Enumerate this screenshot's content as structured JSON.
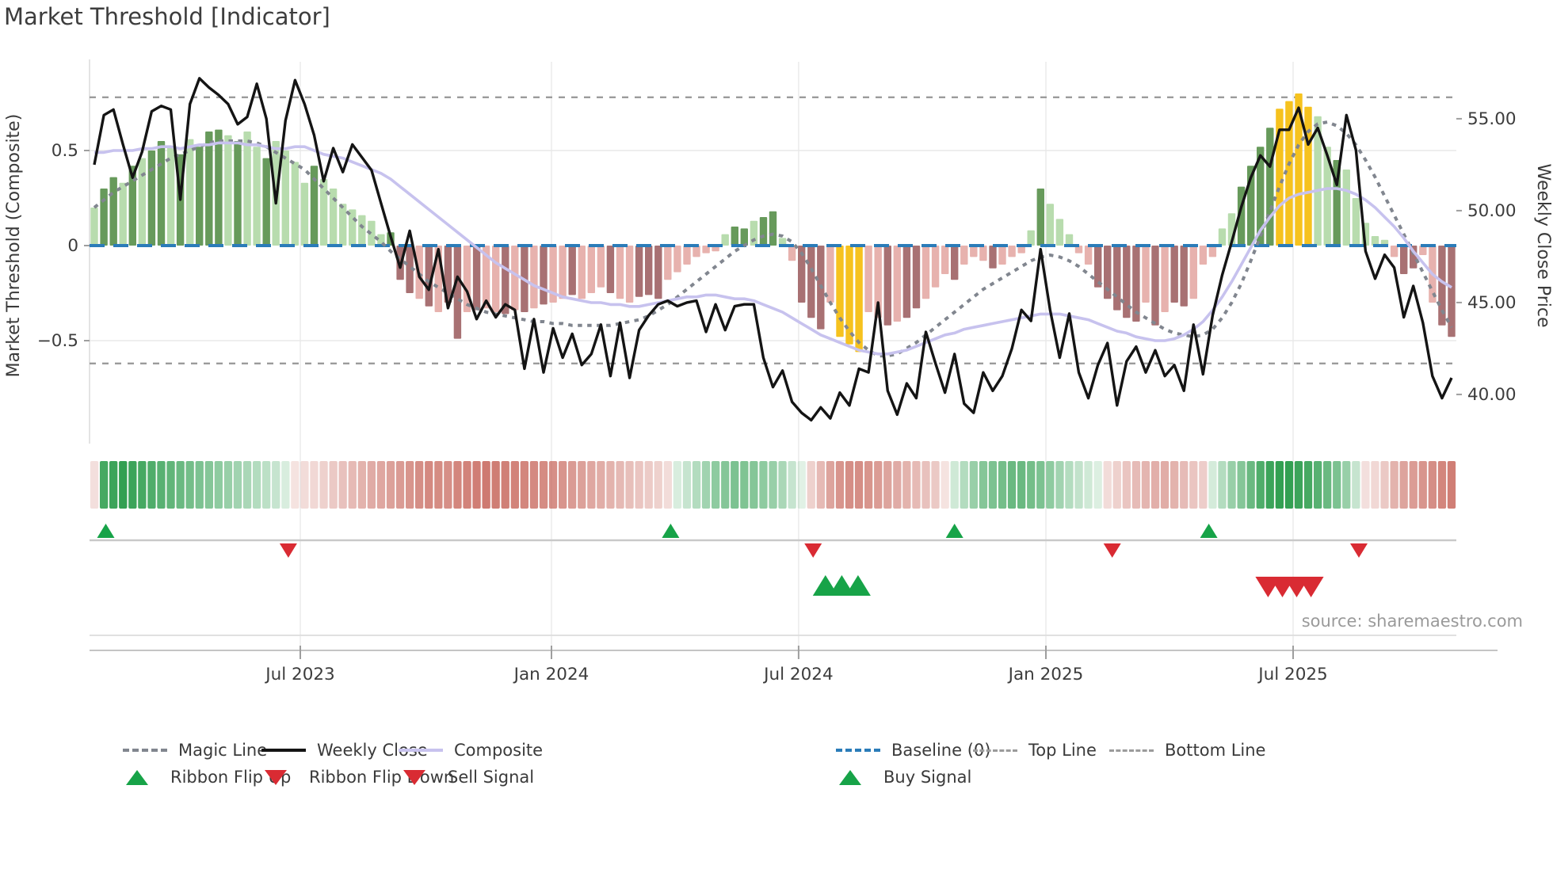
{
  "title": "Market Threshold [Indicator]",
  "source": "source: sharemaestro.com",
  "left_axis": {
    "title": "Market Threshold (Composite)",
    "ticks": [
      {
        "v": 0.5,
        "label": "0.5"
      },
      {
        "v": 0.0,
        "label": "0"
      },
      {
        "v": -0.5,
        "label": "−0.5"
      }
    ]
  },
  "right_axis": {
    "title": "Weekly Close Price",
    "ticks": [
      {
        "p": 55,
        "label": "55.00"
      },
      {
        "p": 50,
        "label": "50.00"
      },
      {
        "p": 45,
        "label": "45.00"
      },
      {
        "p": 40,
        "label": "40.00"
      }
    ]
  },
  "x_axis": {
    "ticks": [
      {
        "pos": 22.05,
        "label": "Jul 2023"
      },
      {
        "pos": 48.33,
        "label": "Jan 2024"
      },
      {
        "pos": 74.19,
        "label": "Jul 2024"
      },
      {
        "pos": 100.06,
        "label": "Jan 2025"
      },
      {
        "pos": 125.92,
        "label": "Jul 2025"
      }
    ]
  },
  "colors": {
    "bar_light_green": "#b8dcae",
    "bar_dark_green": "#679a5b",
    "bar_light_red": "#e7b2ae",
    "bar_dark_red": "#a87173",
    "bar_yellow": "#f6c21e",
    "weekly_close": "#141414",
    "composite_line": "#c7c2ee",
    "magic_line": "#81868f",
    "baseline": "#2b7cb9",
    "top_bottom_line": "#9b9b9b",
    "signal_green": "#17a348",
    "signal_red": "#d92b33",
    "ribbon_green": "#2f9e4f",
    "ribbon_red": "#c1564a"
  },
  "legend": {
    "rows": [
      [
        {
          "label": "Magic Line",
          "swatch": "magic-dashed-line"
        },
        {
          "label": "Weekly Close",
          "swatch": "black-solid-line"
        },
        {
          "label": "Composite",
          "swatch": "purple-solid-line"
        },
        {
          "label": "Baseline (0)",
          "swatch": "blue-dashed-line"
        },
        {
          "label": "Top Line",
          "swatch": "gray-dotted-line"
        },
        {
          "label": "Bottom Line",
          "swatch": "gray-dotted-line"
        }
      ],
      [
        {
          "label": "Ribbon Flip Up",
          "swatch": "green-up-triangle"
        },
        {
          "label": "Ribbon Flip Down",
          "swatch": "red-down-triangle"
        },
        {
          "label": "Sell Signal",
          "swatch": "red-down-triangle"
        },
        {
          "label": "Buy Signal",
          "swatch": "green-up-triangle"
        }
      ]
    ]
  },
  "chart_data": {
    "type": "combo",
    "description": "Weekly market-threshold indicator: composite threshold bars (left axis), weekly close price (right axis), composite and magic smoothing lines, ribbon heat strip and flip/buy/sell signals.",
    "ylim_left": [
      -0.9,
      0.95
    ],
    "ylim_right_ticks": [
      40,
      45,
      50,
      55
    ],
    "baseline": 0,
    "top_line": 0.78,
    "bottom_line": -0.62,
    "weeks": 143,
    "threshold_bars": [
      0.2,
      0.3,
      0.36,
      0.33,
      0.42,
      0.46,
      0.5,
      0.55,
      0.52,
      0.48,
      0.56,
      0.52,
      0.6,
      0.61,
      0.58,
      0.55,
      0.6,
      0.52,
      0.46,
      0.55,
      0.5,
      0.44,
      0.33,
      0.42,
      0.35,
      0.3,
      0.22,
      0.19,
      0.16,
      0.13,
      0.06,
      0.07,
      -0.18,
      -0.25,
      -0.28,
      -0.32,
      -0.35,
      -0.3,
      -0.49,
      -0.35,
      -0.34,
      -0.33,
      -0.35,
      -0.36,
      -0.34,
      -0.35,
      -0.33,
      -0.31,
      -0.3,
      -0.28,
      -0.26,
      -0.28,
      -0.25,
      -0.22,
      -0.25,
      -0.28,
      -0.3,
      -0.27,
      -0.26,
      -0.28,
      -0.18,
      -0.14,
      -0.1,
      -0.06,
      -0.04,
      -0.03,
      0.06,
      0.1,
      0.09,
      0.13,
      0.15,
      0.18,
      0.04,
      -0.08,
      -0.3,
      -0.38,
      -0.44,
      -0.3,
      -0.48,
      -0.52,
      -0.56,
      -0.35,
      -0.38,
      -0.42,
      -0.4,
      -0.38,
      -0.33,
      -0.28,
      -0.22,
      -0.15,
      -0.18,
      -0.1,
      -0.06,
      -0.08,
      -0.12,
      -0.1,
      -0.06,
      -0.04,
      0.08,
      0.3,
      0.22,
      0.14,
      0.06,
      -0.04,
      -0.1,
      -0.22,
      -0.28,
      -0.34,
      -0.38,
      -0.4,
      -0.3,
      -0.42,
      -0.35,
      -0.3,
      -0.32,
      -0.28,
      -0.1,
      -0.06,
      0.09,
      0.17,
      0.31,
      0.42,
      0.52,
      0.62,
      0.72,
      0.76,
      0.8,
      0.73,
      0.68,
      0.52,
      0.45,
      0.4,
      0.25,
      0.12,
      0.05,
      0.03,
      -0.06,
      -0.15,
      -0.12,
      -0.05,
      -0.3,
      -0.42,
      -0.48
    ],
    "bar_styles": "LDDLDLDDLDLDDDLDLLDLLLLDLLLLLLLDddldlddldlldldldlldllldlldddllllllLDDLDDLldddlYYYlldlddllldllldlllLDLLLlldddddldlddlllLLDDDDYYYYLLDLLLLLlddlldd",
    "weekly_close": [
      52.5,
      55.2,
      55.5,
      53.6,
      51.8,
      53.2,
      55.4,
      55.7,
      55.5,
      50.6,
      55.8,
      57.2,
      56.7,
      56.3,
      55.8,
      54.7,
      55.1,
      56.9,
      55.0,
      50.4,
      54.9,
      57.1,
      55.8,
      54.1,
      51.6,
      53.4,
      52.1,
      53.6,
      52.9,
      52.2,
      50.4,
      48.6,
      46.9,
      48.9,
      46.4,
      45.7,
      47.9,
      44.7,
      46.4,
      45.6,
      44.1,
      45.1,
      44.2,
      44.9,
      44.6,
      41.4,
      44.1,
      41.2,
      43.6,
      42.0,
      43.3,
      41.6,
      42.2,
      43.8,
      41.0,
      43.9,
      40.9,
      43.5,
      44.3,
      44.9,
      45.1,
      44.8,
      45.0,
      45.1,
      43.4,
      44.9,
      43.5,
      44.8,
      44.9,
      44.9,
      42.0,
      40.4,
      41.3,
      39.6,
      39.0,
      38.6,
      39.3,
      38.7,
      40.1,
      39.4,
      41.4,
      41.2,
      45.0,
      40.2,
      38.9,
      40.6,
      39.8,
      43.4,
      41.7,
      40.1,
      42.2,
      39.5,
      39.0,
      41.2,
      40.2,
      41.0,
      42.5,
      44.6,
      44.0,
      47.9,
      44.6,
      42.0,
      44.4,
      41.2,
      39.8,
      41.6,
      42.8,
      39.4,
      41.8,
      42.6,
      41.2,
      42.4,
      41.0,
      41.6,
      40.2,
      43.8,
      41.1,
      44.3,
      46.5,
      48.3,
      50.2,
      51.8,
      53.0,
      52.4,
      54.4,
      54.4,
      55.6,
      53.6,
      54.5,
      53.0,
      51.4,
      55.2,
      53.3,
      47.8,
      46.3,
      47.6,
      46.9,
      44.2,
      45.9,
      43.9,
      41.0,
      39.8,
      40.9
    ],
    "composite": [
      0.49,
      0.49,
      0.5,
      0.5,
      0.5,
      0.51,
      0.51,
      0.52,
      0.52,
      0.51,
      0.52,
      0.53,
      0.53,
      0.54,
      0.54,
      0.54,
      0.53,
      0.53,
      0.52,
      0.51,
      0.51,
      0.52,
      0.52,
      0.5,
      0.48,
      0.47,
      0.46,
      0.44,
      0.42,
      0.4,
      0.38,
      0.35,
      0.31,
      0.27,
      0.23,
      0.19,
      0.15,
      0.11,
      0.07,
      0.03,
      -0.01,
      -0.05,
      -0.09,
      -0.12,
      -0.15,
      -0.18,
      -0.21,
      -0.23,
      -0.25,
      -0.27,
      -0.28,
      -0.29,
      -0.3,
      -0.3,
      -0.31,
      -0.31,
      -0.32,
      -0.32,
      -0.31,
      -0.3,
      -0.29,
      -0.28,
      -0.27,
      -0.27,
      -0.26,
      -0.26,
      -0.27,
      -0.28,
      -0.28,
      -0.29,
      -0.31,
      -0.33,
      -0.35,
      -0.38,
      -0.41,
      -0.44,
      -0.47,
      -0.49,
      -0.51,
      -0.53,
      -0.55,
      -0.56,
      -0.57,
      -0.57,
      -0.56,
      -0.55,
      -0.53,
      -0.51,
      -0.49,
      -0.47,
      -0.46,
      -0.44,
      -0.43,
      -0.42,
      -0.41,
      -0.4,
      -0.39,
      -0.38,
      -0.37,
      -0.36,
      -0.36,
      -0.36,
      -0.37,
      -0.38,
      -0.39,
      -0.41,
      -0.43,
      -0.45,
      -0.46,
      -0.48,
      -0.49,
      -0.5,
      -0.5,
      -0.49,
      -0.47,
      -0.44,
      -0.4,
      -0.34,
      -0.27,
      -0.19,
      -0.1,
      -0.01,
      0.08,
      0.15,
      0.21,
      0.25,
      0.27,
      0.28,
      0.29,
      0.3,
      0.3,
      0.29,
      0.27,
      0.24,
      0.2,
      0.15,
      0.1,
      0.04,
      -0.03,
      -0.09,
      -0.15,
      -0.19,
      -0.22
    ],
    "magic_line": [
      0.2,
      0.24,
      0.28,
      0.31,
      0.34,
      0.37,
      0.4,
      0.43,
      0.46,
      0.48,
      0.5,
      0.52,
      0.54,
      0.55,
      0.55,
      0.55,
      0.55,
      0.54,
      0.52,
      0.49,
      0.46,
      0.43,
      0.4,
      0.35,
      0.3,
      0.25,
      0.2,
      0.15,
      0.1,
      0.06,
      0.02,
      -0.03,
      -0.07,
      -0.11,
      -0.15,
      -0.19,
      -0.22,
      -0.25,
      -0.28,
      -0.31,
      -0.33,
      -0.35,
      -0.36,
      -0.37,
      -0.38,
      -0.39,
      -0.4,
      -0.4,
      -0.41,
      -0.41,
      -0.42,
      -0.42,
      -0.42,
      -0.42,
      -0.42,
      -0.41,
      -0.4,
      -0.39,
      -0.37,
      -0.34,
      -0.31,
      -0.27,
      -0.23,
      -0.19,
      -0.15,
      -0.11,
      -0.07,
      -0.03,
      0.0,
      0.03,
      0.05,
      0.06,
      0.05,
      0.02,
      -0.04,
      -0.12,
      -0.21,
      -0.3,
      -0.38,
      -0.45,
      -0.51,
      -0.55,
      -0.58,
      -0.58,
      -0.57,
      -0.54,
      -0.51,
      -0.47,
      -0.43,
      -0.39,
      -0.35,
      -0.31,
      -0.27,
      -0.23,
      -0.2,
      -0.17,
      -0.14,
      -0.11,
      -0.08,
      -0.06,
      -0.05,
      -0.06,
      -0.08,
      -0.11,
      -0.15,
      -0.19,
      -0.23,
      -0.27,
      -0.31,
      -0.35,
      -0.38,
      -0.41,
      -0.44,
      -0.46,
      -0.47,
      -0.48,
      -0.47,
      -0.44,
      -0.38,
      -0.3,
      -0.2,
      -0.08,
      0.05,
      0.18,
      0.31,
      0.43,
      0.53,
      0.6,
      0.64,
      0.65,
      0.63,
      0.59,
      0.53,
      0.45,
      0.36,
      0.26,
      0.16,
      0.06,
      -0.04,
      -0.14,
      -0.24,
      -0.34,
      -0.43
    ],
    "ribbon": [
      -0.1,
      0.9,
      0.95,
      1.0,
      0.95,
      0.9,
      0.85,
      0.8,
      0.75,
      0.7,
      0.65,
      0.6,
      0.55,
      0.5,
      0.45,
      0.4,
      0.35,
      0.3,
      0.25,
      0.2,
      0.1,
      -0.08,
      -0.12,
      -0.15,
      -0.2,
      -0.25,
      -0.3,
      -0.35,
      -0.4,
      -0.45,
      -0.48,
      -0.52,
      -0.56,
      -0.6,
      -0.65,
      -0.68,
      -0.66,
      -0.64,
      -0.7,
      -0.72,
      -0.75,
      -0.78,
      -0.76,
      -0.74,
      -0.72,
      -0.7,
      -0.68,
      -0.66,
      -0.64,
      -0.6,
      -0.56,
      -0.52,
      -0.48,
      -0.44,
      -0.4,
      -0.36,
      -0.32,
      -0.28,
      -0.24,
      -0.2,
      -0.12,
      0.1,
      0.2,
      0.3,
      0.4,
      0.5,
      0.55,
      0.6,
      0.58,
      0.55,
      0.5,
      0.45,
      0.35,
      0.2,
      0.05,
      -0.2,
      -0.35,
      -0.5,
      -0.6,
      -0.65,
      -0.65,
      -0.6,
      -0.55,
      -0.5,
      -0.45,
      -0.4,
      -0.35,
      -0.3,
      -0.25,
      -0.08,
      0.15,
      0.3,
      0.45,
      0.55,
      0.6,
      0.65,
      0.7,
      0.7,
      0.65,
      0.6,
      0.5,
      0.4,
      0.3,
      0.22,
      0.15,
      0.08,
      -0.12,
      -0.2,
      -0.28,
      -0.34,
      -0.38,
      -0.42,
      -0.44,
      -0.4,
      -0.34,
      -0.28,
      -0.22,
      0.12,
      0.3,
      0.45,
      0.55,
      0.7,
      0.85,
      0.95,
      1.0,
      1.0,
      0.95,
      0.9,
      0.8,
      0.7,
      0.6,
      0.45,
      0.2,
      -0.1,
      -0.15,
      -0.25,
      -0.4,
      -0.5,
      -0.55,
      -0.6,
      -0.65,
      -0.7,
      -0.75
    ],
    "signals": {
      "flip_up_weeks": [
        1.2,
        60.3,
        90,
        116.6
      ],
      "flip_down_weeks": [
        20.3,
        75.2,
        106.5,
        132.3
      ],
      "buy_weeks": [
        76.5,
        78.2,
        79.9
      ],
      "sell_weeks": [
        122.8,
        124.3,
        125.8,
        127.3
      ]
    }
  }
}
